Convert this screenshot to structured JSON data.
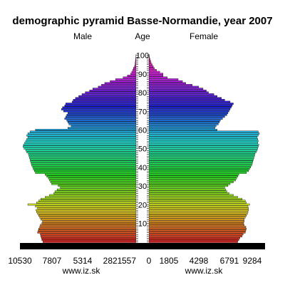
{
  "chart_data": {
    "type": "bar",
    "title": "demographic pyramid Basse-Normandie, year 2007",
    "left_label": "Male",
    "center_label": "Age",
    "right_label": "Female",
    "male_axis_ticks": [
      "10530",
      "7807",
      "5314",
      "2821",
      "557"
    ],
    "female_axis_ticks": [
      "0",
      "1805",
      "4298",
      "6791",
      "9284"
    ],
    "age_ticks": [
      "10",
      "20",
      "30",
      "40",
      "50",
      "60",
      "70",
      "80",
      "90",
      "100"
    ],
    "male_max": 10530,
    "female_max": 10530,
    "ages": [
      0,
      1,
      2,
      3,
      4,
      5,
      6,
      7,
      8,
      9,
      10,
      11,
      12,
      13,
      14,
      15,
      16,
      17,
      18,
      19,
      20,
      21,
      22,
      23,
      24,
      25,
      26,
      27,
      28,
      29,
      30,
      31,
      32,
      33,
      34,
      35,
      36,
      37,
      38,
      39,
      40,
      41,
      42,
      43,
      44,
      45,
      46,
      47,
      48,
      49,
      50,
      51,
      52,
      53,
      54,
      55,
      56,
      57,
      58,
      59,
      60,
      61,
      62,
      63,
      64,
      65,
      66,
      67,
      68,
      69,
      70,
      71,
      72,
      73,
      74,
      75,
      76,
      77,
      78,
      79,
      80,
      81,
      82,
      83,
      84,
      85,
      86,
      87,
      88,
      89,
      90,
      91,
      92,
      93,
      94,
      95,
      96,
      97,
      98,
      99,
      100
    ],
    "male": [
      8600,
      8700,
      8750,
      8800,
      8850,
      9100,
      9050,
      9000,
      8900,
      8850,
      8700,
      8650,
      8800,
      8900,
      9000,
      9100,
      9200,
      9250,
      9100,
      9300,
      10000,
      9200,
      9000,
      8800,
      8400,
      8000,
      7600,
      7500,
      7300,
      7000,
      7200,
      7800,
      7900,
      8000,
      8100,
      8250,
      8400,
      9300,
      9400,
      9500,
      9550,
      9650,
      9700,
      9750,
      9800,
      9850,
      9900,
      9950,
      10100,
      10200,
      10350,
      10450,
      10400,
      10300,
      10200,
      10100,
      10000,
      10100,
      10000,
      9800,
      9300,
      6300,
      6000,
      6200,
      6300,
      6400,
      6600,
      6500,
      6400,
      6300,
      6700,
      6900,
      6800,
      6600,
      6500,
      5900,
      5800,
      5600,
      5300,
      5000,
      4700,
      4300,
      4000,
      3500,
      3200,
      2900,
      2400,
      1900,
      1200,
      800,
      500,
      400,
      300,
      250,
      150,
      100,
      80,
      60,
      40,
      20,
      10
    ],
    "female": [
      8200,
      8300,
      8400,
      8600,
      8700,
      8900,
      8950,
      9000,
      8950,
      8800,
      8750,
      8800,
      8800,
      8900,
      9000,
      9100,
      9150,
      9200,
      9200,
      9150,
      9300,
      9000,
      8900,
      8600,
      8200,
      7800,
      7400,
      7200,
      7100,
      7000,
      7300,
      7500,
      7800,
      8000,
      8100,
      8200,
      8300,
      9000,
      9200,
      9300,
      9400,
      9500,
      9550,
      9600,
      9650,
      9700,
      9750,
      9800,
      9900,
      10000,
      10050,
      10100,
      10150,
      10050,
      10100,
      10050,
      10000,
      10100,
      10200,
      10100,
      6300,
      6100,
      6200,
      6400,
      6500,
      6600,
      6800,
      7000,
      7200,
      7300,
      7400,
      7500,
      7600,
      7700,
      7800,
      7500,
      7000,
      6700,
      6300,
      6000,
      5500,
      5300,
      5000,
      4600,
      4000,
      3400,
      3100,
      2700,
      1700,
      1300,
      1300,
      1000,
      700,
      500,
      400,
      300,
      200,
      150,
      100,
      50,
      20
    ]
  },
  "footer": {
    "left_source": "www.iz.sk",
    "right_source": "www.iz.sk"
  }
}
